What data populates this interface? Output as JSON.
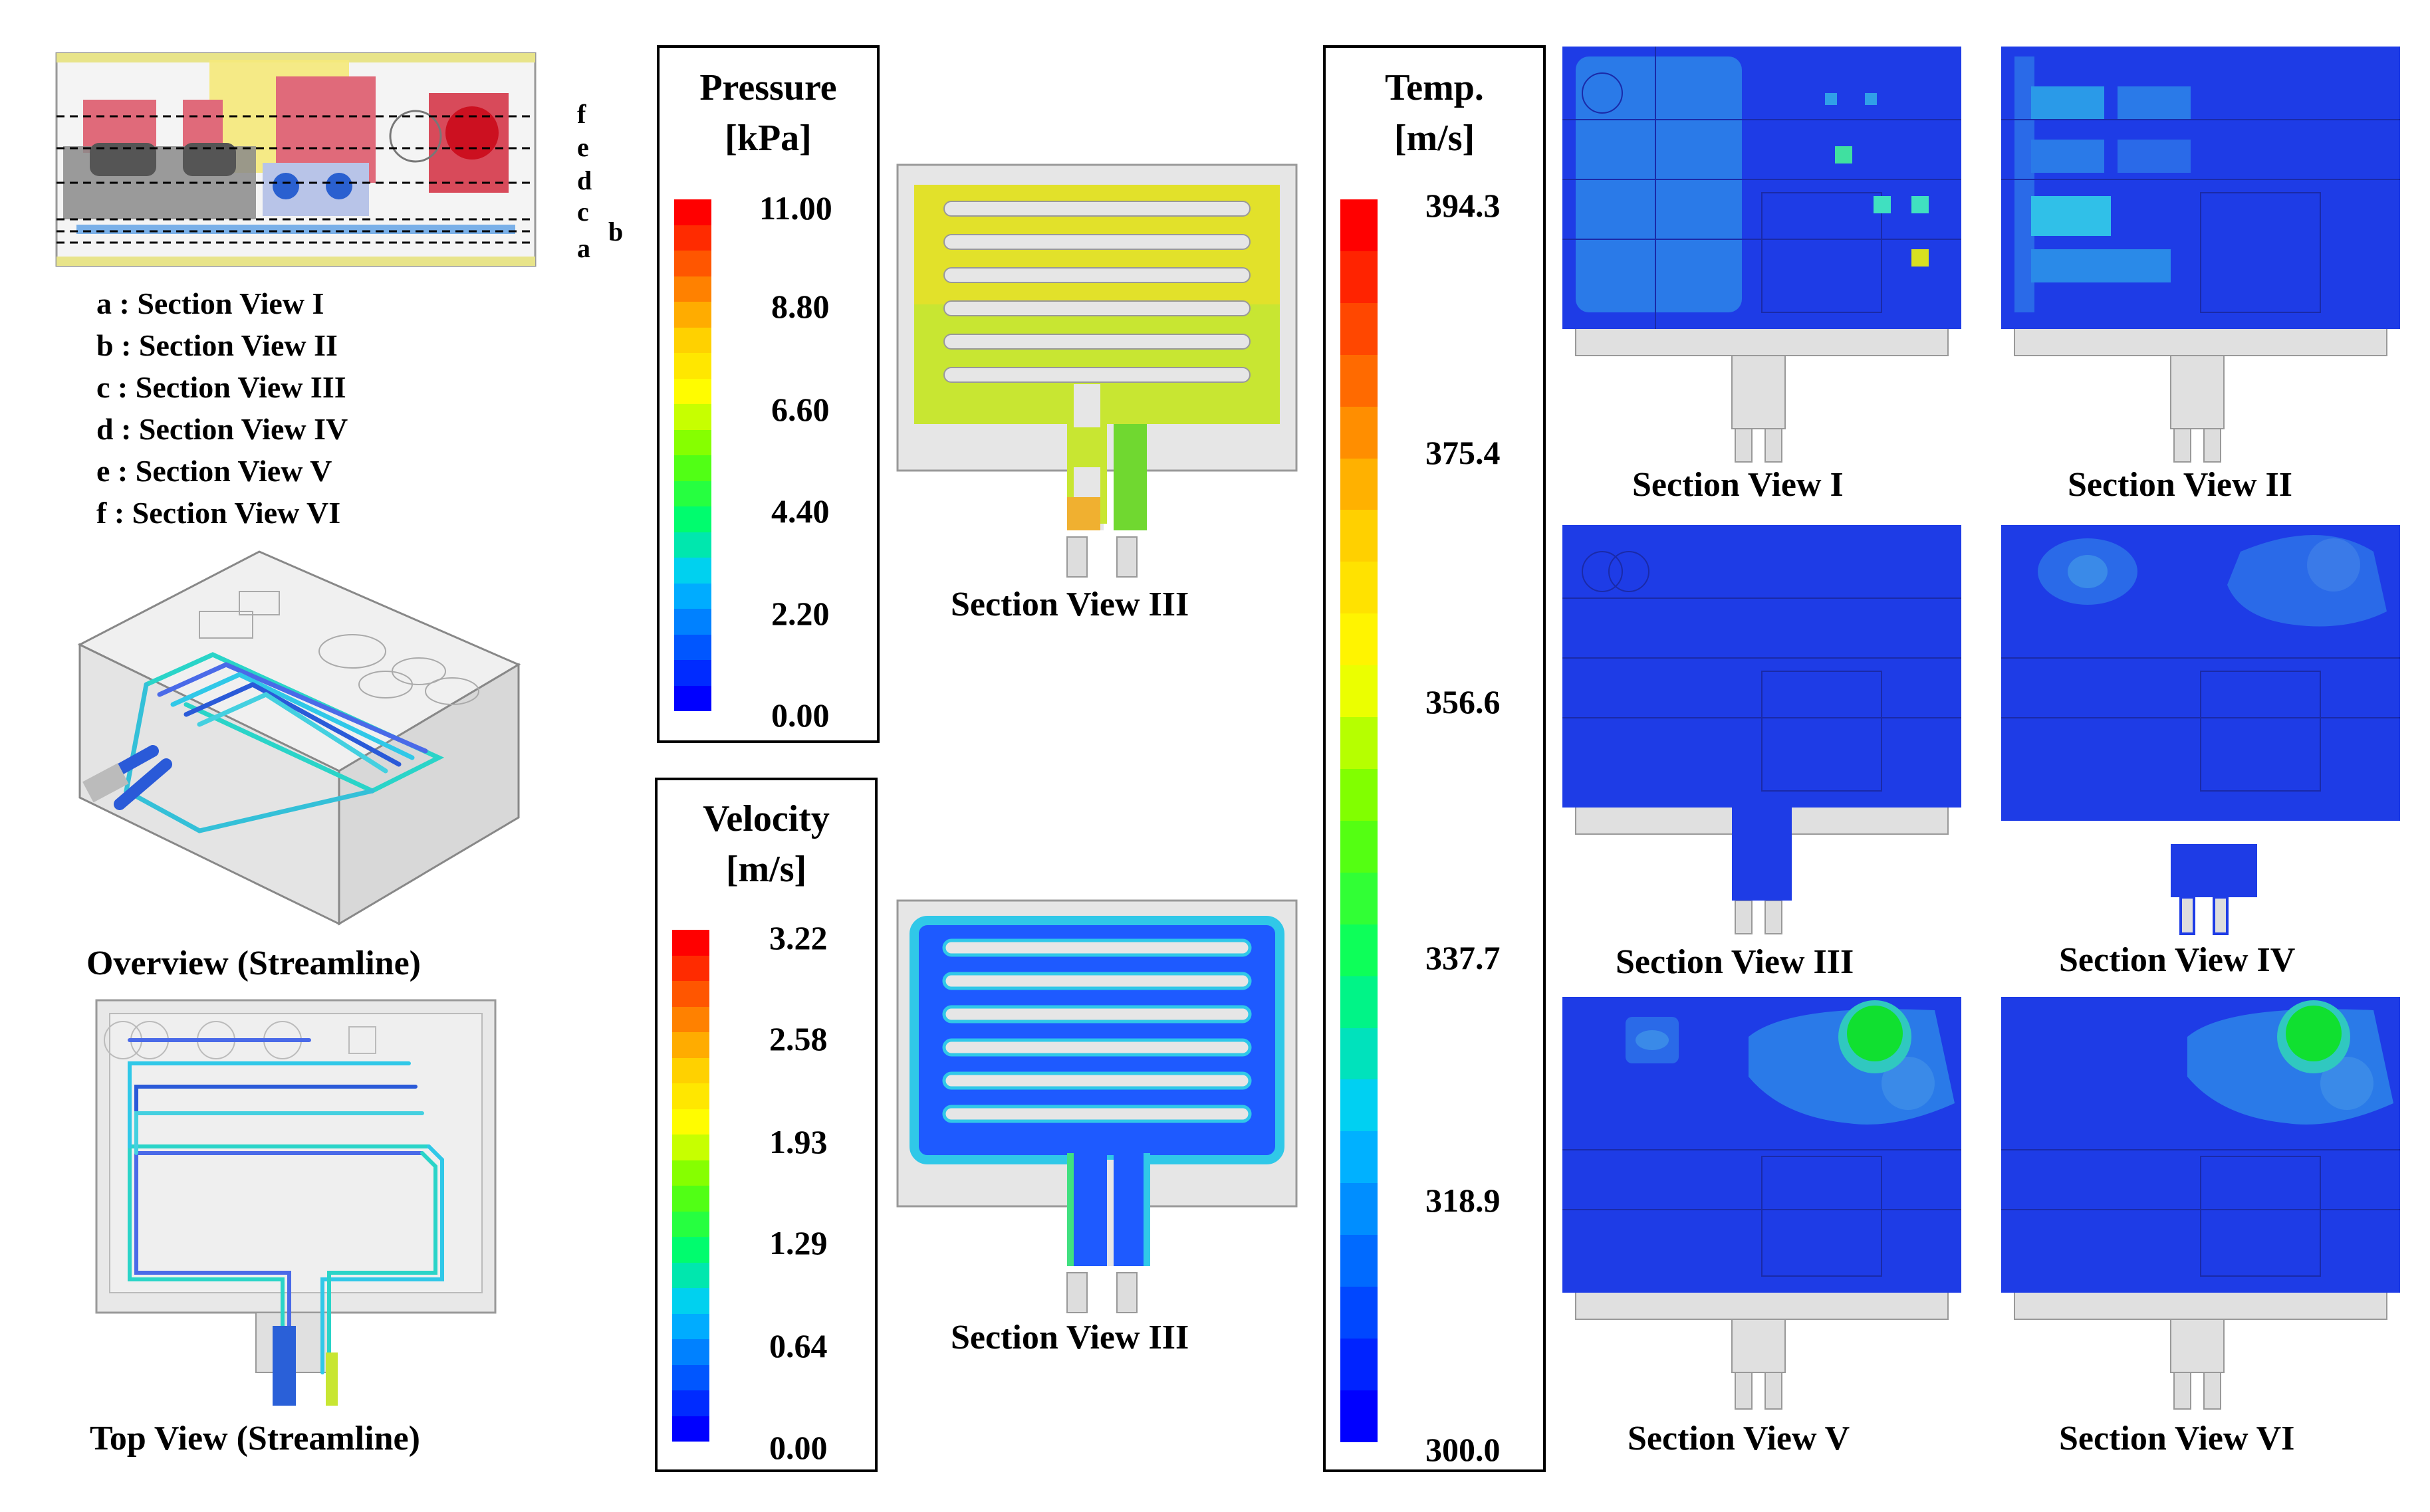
{
  "legend_list": [
    {
      "letter": "a",
      "text": "a : Section View I"
    },
    {
      "letter": "b",
      "text": "b : Section View II"
    },
    {
      "letter": "c",
      "text": "c : Section View III"
    },
    {
      "letter": "d",
      "text": "d : Section View IV"
    },
    {
      "letter": "e",
      "text": "e : Section View V"
    },
    {
      "letter": "f",
      "text": "f : Section View VI"
    }
  ],
  "section_letters": [
    "f",
    "e",
    "d",
    "c",
    "a",
    "b"
  ],
  "captions": {
    "overview": "Overview (Streamline)",
    "top_view": "Top View (Streamline)",
    "pressure_section": "Section View III",
    "velocity_section": "Section View III",
    "sec1": "Section View I",
    "sec2": "Section View II",
    "sec3": "Section View III",
    "sec4": "Section View IV",
    "sec5": "Section View V",
    "sec6": "Section View VI"
  },
  "colorbars": {
    "pressure": {
      "title_line1": "Pressure",
      "title_line2": "[kPa]",
      "ticks": [
        "11.00",
        "8.80",
        "6.60",
        "4.40",
        "2.20",
        "0.00"
      ]
    },
    "velocity": {
      "title_line1": "Velocity",
      "title_line2": "[m/s]",
      "ticks": [
        "3.22",
        "2.58",
        "1.93",
        "1.29",
        "0.64",
        "0.00"
      ]
    },
    "temperature": {
      "title_line1": "Temp.",
      "title_line2": "[m/s]",
      "ticks": [
        "394.3",
        "375.4",
        "356.6",
        "337.7",
        "318.9",
        "300.0"
      ]
    }
  },
  "colors": {
    "jet": [
      "#0000ff",
      "#0066ff",
      "#00ccff",
      "#00ff66",
      "#66ff00",
      "#ffff00",
      "#ffcc00",
      "#ff6600",
      "#ff0000"
    ],
    "section_bg": "#1e3ce6",
    "pressure_fill": "#c8e632",
    "velocity_fill": "#1e5aff"
  }
}
